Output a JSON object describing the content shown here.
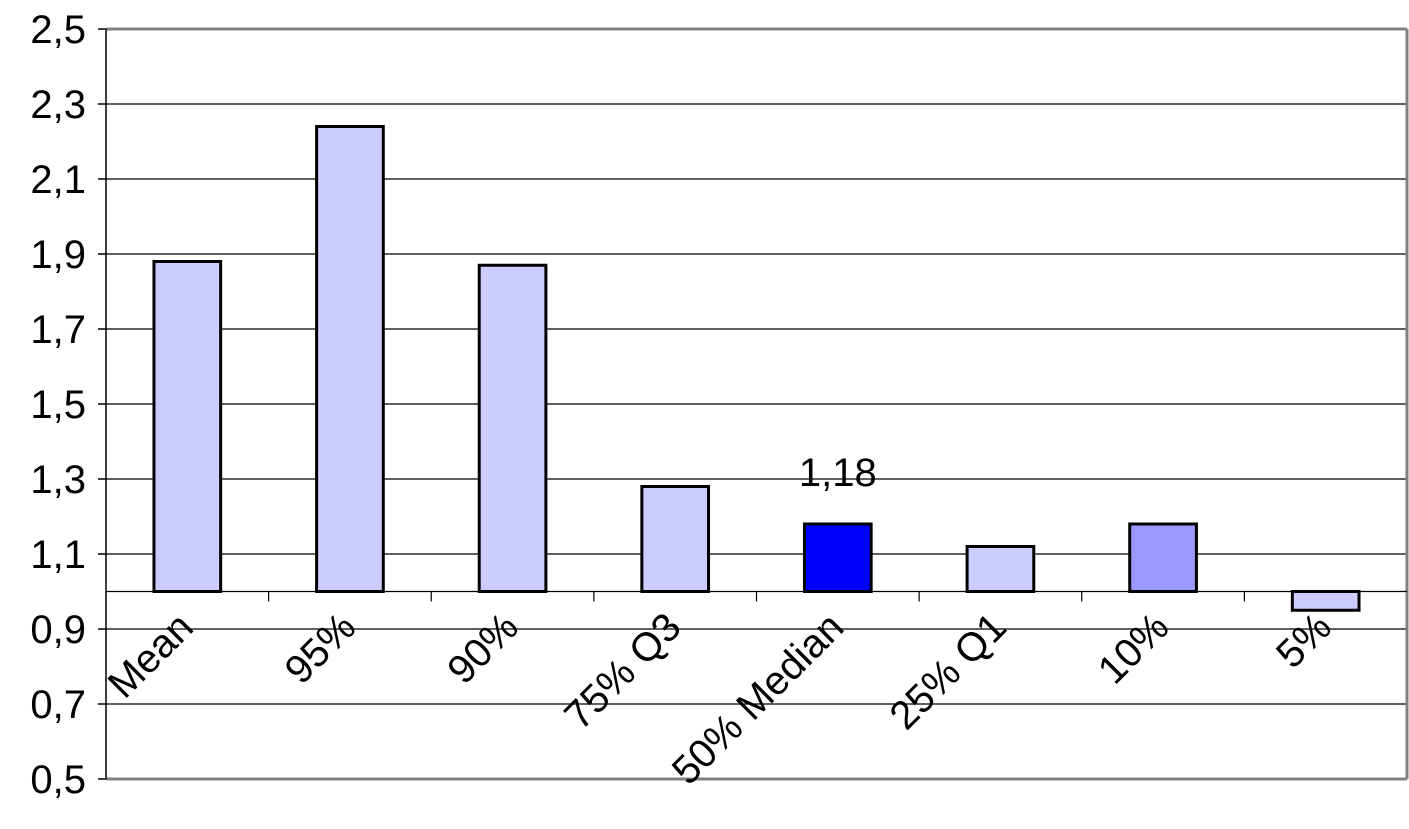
{
  "chart_data": {
    "type": "bar",
    "categories": [
      "Mean",
      "95%",
      "90%",
      "75% Q3",
      "50% Median",
      "25% Q1",
      "10%",
      "5%"
    ],
    "values": [
      1.88,
      2.24,
      1.87,
      1.28,
      1.18,
      1.12,
      1.18,
      0.95
    ],
    "baseline": 1.0,
    "bar_colors": [
      "#ccccff",
      "#ccccff",
      "#ccccff",
      "#ccccff",
      "#0000ff",
      "#ccccff",
      "#9999ff",
      "#ccccff"
    ],
    "data_labels": [
      {
        "category": "50% Median",
        "text": "1,18"
      }
    ],
    "y_ticks": [
      "0,5",
      "0,7",
      "0,9",
      "1,1",
      "1,3",
      "1,5",
      "1,7",
      "1,9",
      "2,1",
      "2,3",
      "2,5"
    ],
    "ylim": [
      0.5,
      2.5
    ],
    "grid": true,
    "legend": "none",
    "title": "",
    "xlabel": "",
    "ylabel": ""
  }
}
